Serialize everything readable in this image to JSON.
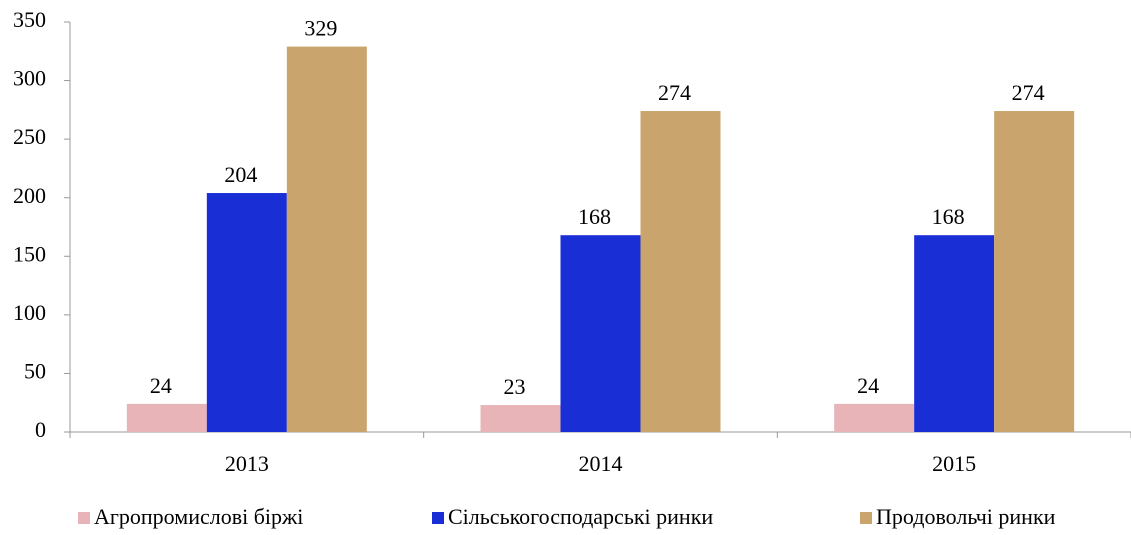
{
  "chart_data": {
    "type": "bar",
    "categories": [
      "2013",
      "2014",
      "2015"
    ],
    "series": [
      {
        "name": "Агропромислові біржі",
        "color": "#e8b4b8",
        "values": [
          24,
          23,
          24
        ]
      },
      {
        "name": "Сільськогосподарські ринки",
        "color": "#1a2ed6",
        "values": [
          204,
          168,
          168
        ]
      },
      {
        "name": "Продовольчі ринки",
        "color": "#c9a46c",
        "values": [
          329,
          274,
          274
        ]
      }
    ],
    "ylim": [
      0,
      350
    ],
    "yticks": [
      0,
      50,
      100,
      150,
      200,
      250,
      300,
      350
    ],
    "grid": false
  }
}
